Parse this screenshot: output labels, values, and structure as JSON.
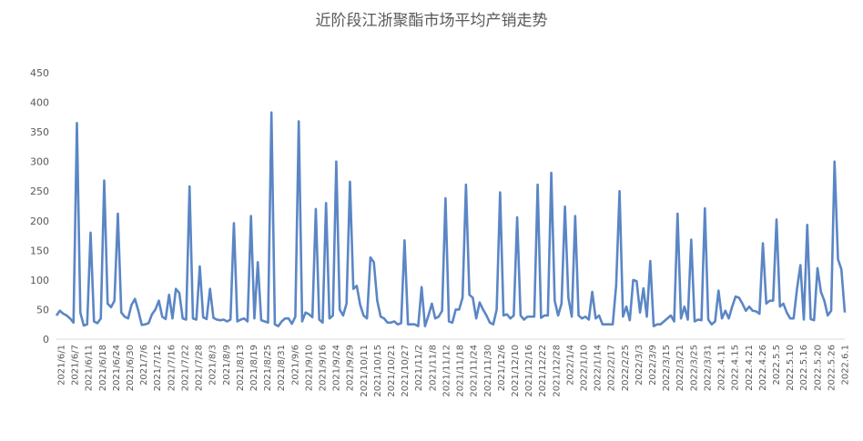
{
  "chart_data": {
    "type": "line",
    "title": "近阶段江浙聚酯市场平均产销走势",
    "xlabel": "",
    "ylabel": "",
    "ylim": [
      0,
      450
    ],
    "yticks": [
      0,
      50,
      100,
      150,
      200,
      250,
      300,
      350,
      400,
      450
    ],
    "grid": false,
    "legend": "none",
    "line_color": "#5b86c5",
    "xtick_labels": [
      "2021/6/1",
      "2021/6/7",
      "2021/6/11",
      "2021/6/18",
      "2021/6/24",
      "2021/6/30",
      "2021/7/6",
      "2021/7/12",
      "2021/7/16",
      "2021/7/22",
      "2021/7/28",
      "2021/8/3",
      "2021/8/9",
      "2021/8/13",
      "2021/8/19",
      "2021/8/25",
      "2021/8/31",
      "2021/9/6",
      "2021/9/10",
      "2021/9/16",
      "2021/9/24",
      "2021/9/29",
      "2021/10/11",
      "2021/10/15",
      "2021/10/21",
      "2021/10/27",
      "2021/11/2",
      "2021/11/8",
      "2021/11/12",
      "2021/11/18",
      "2021/11/24",
      "2021/11/30",
      "2021/12/6",
      "2021/12/10",
      "2021/12/16",
      "2021/12/22",
      "2021/12/28",
      "2022/1/4",
      "2022/1/10",
      "2022/1/14",
      "2022/2/17",
      "2022/2/25",
      "2022/3/3",
      "2022/3/9",
      "2022/3/15",
      "2022/3/21",
      "2022/3/25",
      "2022/3/31",
      "2022.4.11",
      "2022.4.15",
      "2022.4.21",
      "2022.4.26",
      "2022.5.5",
      "2022.5.10",
      "2022.5.16",
      "2022.5.20",
      "2022.5.26",
      "2022.6.1"
    ],
    "values": [
      40,
      48,
      43,
      40,
      35,
      28,
      365,
      45,
      23,
      25,
      180,
      30,
      27,
      35,
      268,
      60,
      54,
      65,
      212,
      45,
      38,
      35,
      58,
      68,
      48,
      24,
      25,
      27,
      42,
      50,
      65,
      38,
      34,
      75,
      35,
      85,
      78,
      35,
      33,
      258,
      35,
      33,
      123,
      37,
      34,
      85,
      36,
      33,
      32,
      33,
      30,
      33,
      196,
      30,
      33,
      35,
      30,
      208,
      35,
      130,
      32,
      30,
      28,
      383,
      25,
      22,
      30,
      35,
      35,
      26,
      38,
      368,
      30,
      45,
      42,
      37,
      220,
      33,
      28,
      230,
      35,
      40,
      300,
      50,
      40,
      60,
      266,
      85,
      90,
      58,
      40,
      35,
      138,
      130,
      65,
      38,
      35,
      28,
      28,
      30,
      25,
      27,
      167,
      25,
      25,
      25,
      22,
      88,
      22,
      40,
      60,
      35,
      38,
      48,
      238,
      30,
      28,
      50,
      50,
      70,
      261,
      75,
      70,
      35,
      62,
      50,
      40,
      28,
      25,
      50,
      248,
      40,
      42,
      35,
      40,
      206,
      40,
      33,
      38,
      38,
      38,
      261,
      36,
      40,
      40,
      281,
      65,
      40,
      60,
      224,
      70,
      38,
      208,
      40,
      35,
      38,
      33,
      80,
      35,
      40,
      25,
      25,
      25,
      25,
      90,
      250,
      38,
      55,
      32,
      100,
      98,
      45,
      86,
      38,
      132,
      22,
      25,
      25,
      30,
      35,
      40,
      30,
      212,
      35,
      55,
      33,
      168,
      30,
      33,
      32,
      221,
      33,
      25,
      30,
      82,
      35,
      48,
      35,
      55,
      72,
      70,
      60,
      48,
      55,
      48,
      47,
      43,
      162,
      60,
      65,
      65,
      202,
      55,
      60,
      45,
      35,
      35,
      85,
      125,
      33,
      193,
      34,
      32,
      120,
      80,
      65,
      40,
      48,
      300,
      135,
      118,
      45
    ]
  }
}
